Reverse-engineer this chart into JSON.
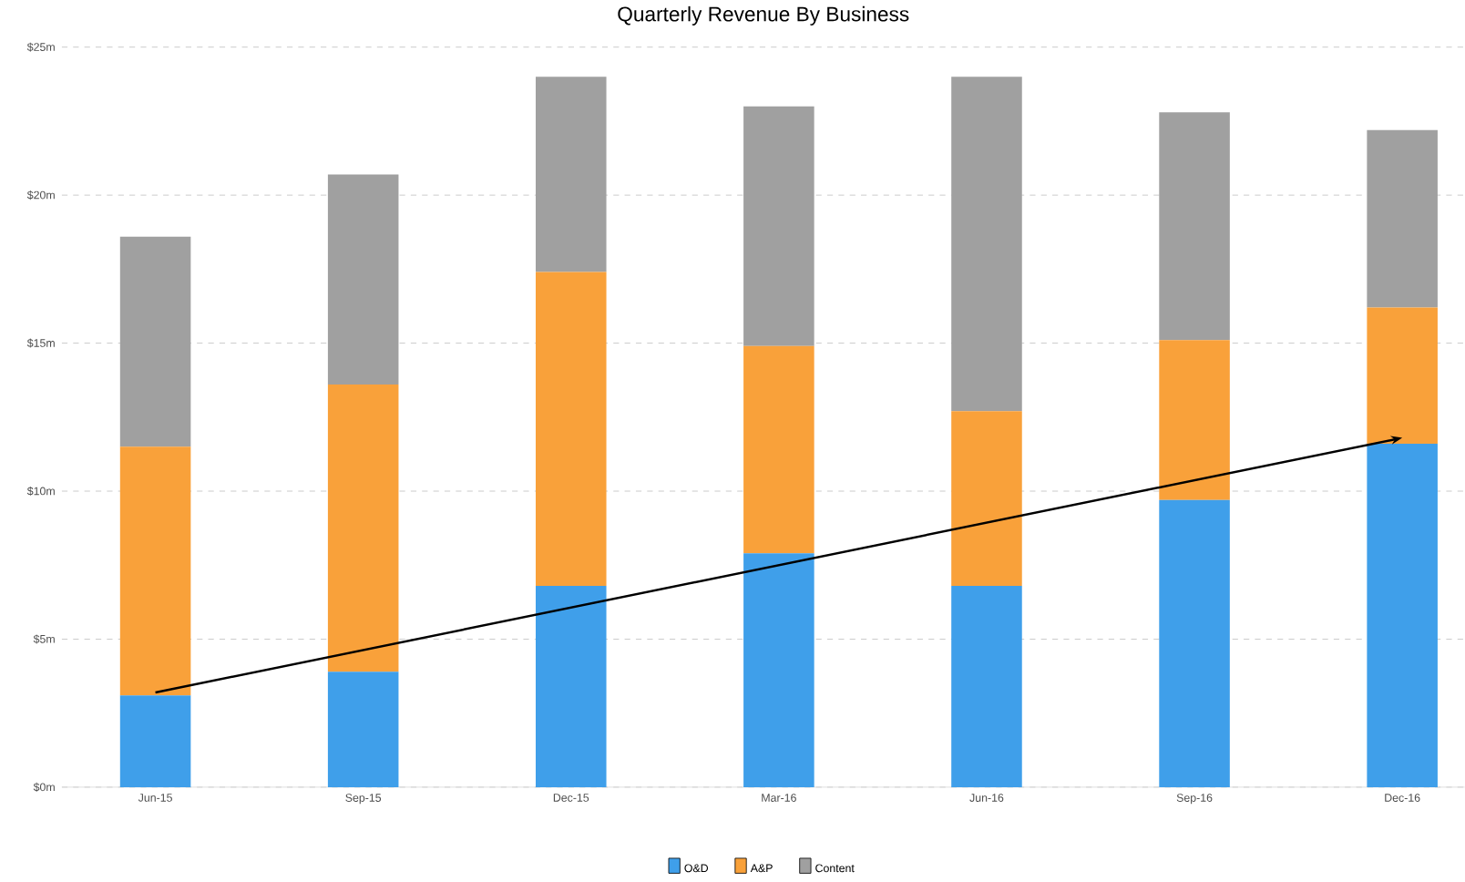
{
  "chart_data": {
    "type": "bar",
    "title": "Quarterly Revenue By Business",
    "stacked": true,
    "categories": [
      "Jun-15",
      "Sep-15",
      "Dec-15",
      "Mar-16",
      "Jun-16",
      "Sep-16",
      "Dec-16"
    ],
    "series": [
      {
        "name": "O&D",
        "color": "#3f9fea",
        "values": [
          3.1,
          3.9,
          6.8,
          7.9,
          6.8,
          9.7,
          11.6
        ]
      },
      {
        "name": "A&P",
        "color": "#f9a13a",
        "values": [
          8.4,
          9.7,
          10.6,
          7.0,
          5.9,
          5.4,
          4.6
        ]
      },
      {
        "name": "Content",
        "color": "#a0a0a0",
        "values": [
          7.1,
          7.1,
          6.6,
          8.1,
          11.3,
          7.7,
          6.0
        ]
      },
      {
        "type": "line",
        "color": "#000000",
        "values": [
          3.2,
          null,
          null,
          null,
          null,
          null,
          11.8
        ]
      }
    ],
    "ylim": [
      0,
      25
    ],
    "yticks": [
      {
        "value": 0,
        "label": "$0m"
      },
      {
        "value": 5,
        "label": "$5m"
      },
      {
        "value": 10,
        "label": "$10m"
      },
      {
        "value": 15,
        "label": "$15m"
      },
      {
        "value": 20,
        "label": "$20m"
      },
      {
        "value": 25,
        "label": "$25m"
      }
    ],
    "grid": "y",
    "legend": "bottom"
  }
}
